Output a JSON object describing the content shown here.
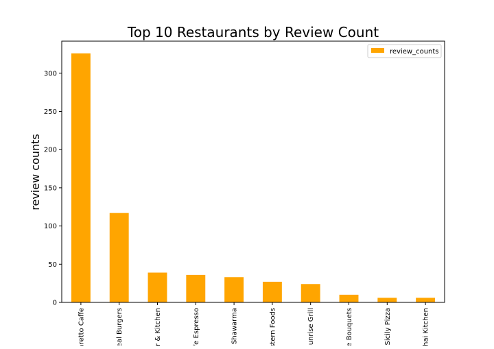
{
  "chart_data": {
    "type": "bar",
    "title": "Top 10 Restaurants by Review Count",
    "xlabel": "",
    "ylabel": "review counts",
    "categories": [
      "Amaretto Caffe",
      "Real Burgers",
      "Bar & Kitchen",
      "Cafe Espresso",
      "Shawarma",
      "Eastern Foods",
      "Sunrise Grill",
      "The Bouquets",
      "Sicily Pizza",
      "Thai Kitchen"
    ],
    "series": [
      {
        "name": "review_counts",
        "values": [
          326,
          117,
          39,
          36,
          33,
          27,
          24,
          10,
          6,
          6
        ]
      }
    ],
    "ylim": [
      0,
      342
    ],
    "yticks": [
      0,
      50,
      100,
      150,
      200,
      250,
      300
    ],
    "grid": false,
    "legend_position": "top-right",
    "colors": {
      "bar": "#ffa500",
      "axis": "#000000",
      "background": "#ffffff"
    }
  }
}
